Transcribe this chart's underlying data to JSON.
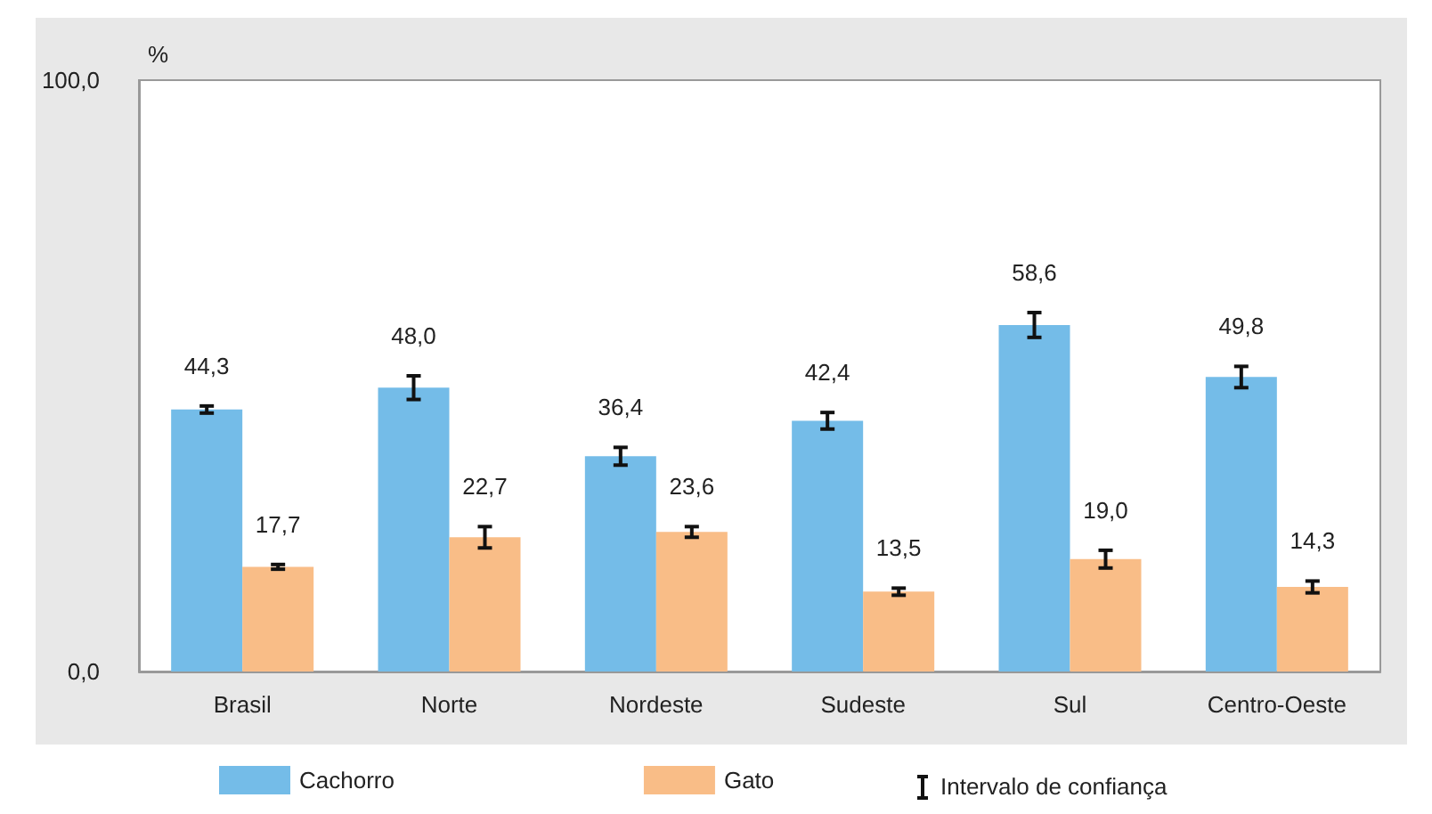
{
  "chart_data": {
    "type": "bar",
    "ylabel": "%",
    "categories": [
      "Brasil",
      "Norte",
      "Nordeste",
      "Sudeste",
      "Sul",
      "Centro-Oeste"
    ],
    "ylim": [
      0,
      100
    ],
    "yticks": [
      {
        "value": 0,
        "label": "0,0"
      },
      {
        "value": 100,
        "label": "100,0"
      }
    ],
    "grid": false,
    "legend": "bottom",
    "series": [
      {
        "name": "Cachorro",
        "color": "#74bce8",
        "values": [
          44.3,
          48.0,
          36.4,
          42.4,
          58.6,
          49.8
        ],
        "errors": [
          0.6,
          2.0,
          1.5,
          1.4,
          2.1,
          1.8
        ],
        "value_labels": [
          "44,3",
          "48,0",
          "36,4",
          "42,4",
          "58,6",
          "49,8"
        ]
      },
      {
        "name": "Gato",
        "color": "#f9bd87",
        "values": [
          17.7,
          22.7,
          23.6,
          13.5,
          19.0,
          14.3
        ],
        "errors": [
          0.4,
          1.8,
          0.9,
          0.6,
          1.5,
          1.0
        ],
        "value_labels": [
          "17,7",
          "22,7",
          "23,6",
          "13,5",
          "19,0",
          "14,3"
        ]
      }
    ],
    "annotations": [
      "Intervalo de confiança"
    ]
  }
}
